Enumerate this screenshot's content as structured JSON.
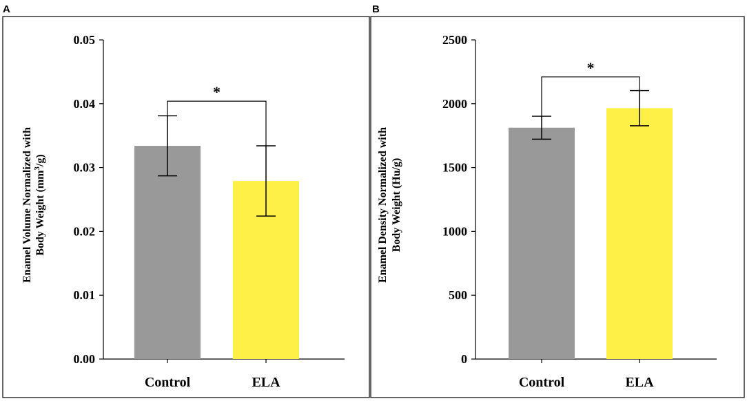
{
  "chart_data": [
    {
      "panel": "A",
      "type": "bar",
      "categories": [
        "Control",
        "ELA"
      ],
      "values": [
        0.0334,
        0.0279
      ],
      "error": [
        0.0047,
        0.0055
      ],
      "colors": [
        "#999999",
        "#fff047"
      ],
      "ylabel_line1": "Enamel Volume Normalized with",
      "ylabel_line2_prefix": "Body Weight (mm",
      "ylabel_sup": "3",
      "ylabel_line2_suffix": "/g)",
      "ylim": [
        0,
        0.05
      ],
      "yticks": [
        0,
        0.01,
        0.02,
        0.03,
        0.04,
        0.05
      ],
      "ytick_labels": [
        "0.00",
        "0.01",
        "0.02",
        "0.03",
        "0.04",
        "0.05"
      ],
      "bracket_value": 0.0404,
      "significance": "*"
    },
    {
      "panel": "B",
      "type": "bar",
      "categories": [
        "Control",
        "ELA"
      ],
      "values": [
        1812,
        1965
      ],
      "error": [
        90,
        138
      ],
      "colors": [
        "#999999",
        "#fff047"
      ],
      "ylabel_line1": "Enamel Density Normalized with",
      "ylabel_line2_prefix": "Body Weight (Hu/g)",
      "ylabel_sup": "",
      "ylabel_line2_suffix": "",
      "ylim": [
        0,
        2500
      ],
      "yticks": [
        0,
        500,
        1000,
        1500,
        2000,
        2500
      ],
      "ytick_labels": [
        "0",
        "500",
        "1000",
        "1500",
        "2000",
        "2500"
      ],
      "bracket_value": 2210,
      "significance": "*"
    }
  ]
}
